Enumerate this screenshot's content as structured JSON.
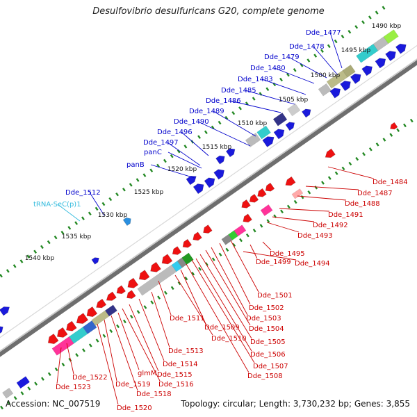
{
  "title": "Desulfovibrio desulfuricans G20, complete genome",
  "accession": "Accession: NC_007519",
  "topology": "Topology: circular; Length: 3,730,232 bp; Genes: 3,855",
  "colors": {
    "forward_label": "#0000cc",
    "reverse_label": "#cc0000",
    "rna_label": "#33bbdd",
    "ruler_tick": "#228822",
    "backbone": "#888888"
  },
  "ruler": [
    {
      "label": "1490 kbp"
    },
    {
      "label": "1495 kbp"
    },
    {
      "label": "1500 kbp"
    },
    {
      "label": "1505 kbp"
    },
    {
      "label": "1510 kbp"
    },
    {
      "label": "1515 kbp"
    },
    {
      "label": "1520 kbp"
    },
    {
      "label": "1525 kbp"
    },
    {
      "label": "1530 kbp"
    },
    {
      "label": "1535 kbp"
    },
    {
      "label": "1540 kbp"
    }
  ],
  "forward_genes": [
    {
      "label": "Dde_1477"
    },
    {
      "label": "Dde_1478"
    },
    {
      "label": "Dde_1479"
    },
    {
      "label": "Dde_1480"
    },
    {
      "label": "Dde_1483"
    },
    {
      "label": "Dde_1485"
    },
    {
      "label": "Dde_1486"
    },
    {
      "label": "Dde_1489"
    },
    {
      "label": "Dde_1490"
    },
    {
      "label": "Dde_1496"
    },
    {
      "label": "Dde_1497"
    },
    {
      "label": "panC"
    },
    {
      "label": "panB"
    },
    {
      "label": "Dde_1512"
    },
    {
      "label": "tRNA-SeC(p)1"
    }
  ],
  "reverse_genes": [
    {
      "label": "Dde_1484"
    },
    {
      "label": "Dde_1487"
    },
    {
      "label": "Dde_1488"
    },
    {
      "label": "Dde_1491"
    },
    {
      "label": "Dde_1492"
    },
    {
      "label": "Dde_1493"
    },
    {
      "label": "Dde_1495"
    },
    {
      "label": "Dde_1499"
    },
    {
      "label": "Dde_1494"
    },
    {
      "label": "Dde_1501"
    },
    {
      "label": "Dde_1502"
    },
    {
      "label": "Dde_1503"
    },
    {
      "label": "Dde_1504"
    },
    {
      "label": "Dde_1505"
    },
    {
      "label": "Dde_1506"
    },
    {
      "label": "Dde_1507"
    },
    {
      "label": "Dde_1508"
    },
    {
      "label": "Dde_1511"
    },
    {
      "label": "Dde_1509"
    },
    {
      "label": "Dde_1510"
    },
    {
      "label": "Dde_1513"
    },
    {
      "label": "Dde_1514"
    },
    {
      "label": "Dde_1515"
    },
    {
      "label": "Dde_1516"
    },
    {
      "label": "glmM"
    },
    {
      "label": "Dde_1518"
    },
    {
      "label": "Dde_1519"
    },
    {
      "label": "Dde_1520"
    },
    {
      "label": "Dde_1522"
    },
    {
      "label": "Dde_1523"
    }
  ]
}
